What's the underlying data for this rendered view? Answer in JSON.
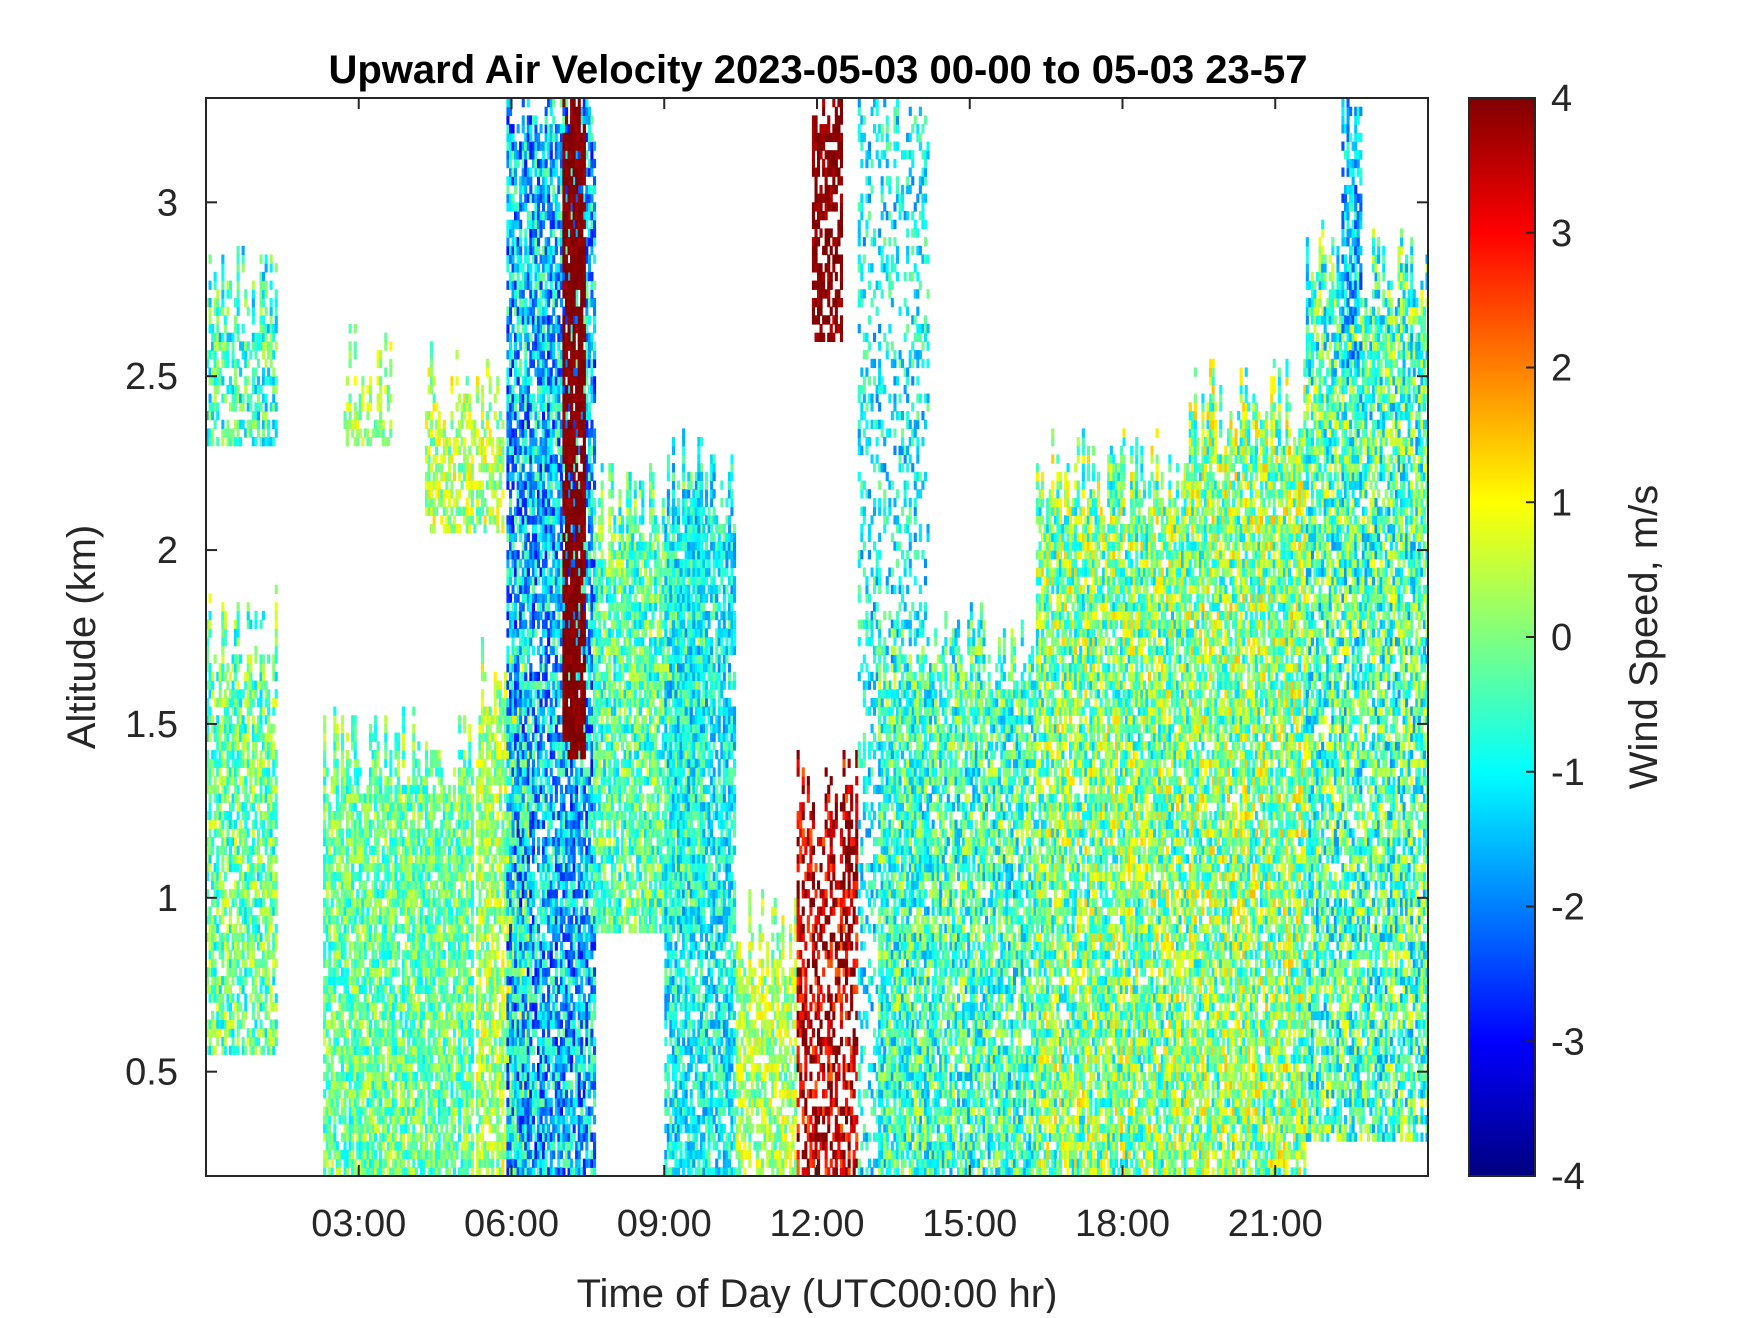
{
  "chart_data": {
    "type": "heatmap",
    "title": "Upward Air Velocity 2023-05-03 00-00 to 05-03 23-57",
    "xlabel": "Time of Day (UTC00:00 hr)",
    "ylabel": "Altitude (km)",
    "colorbar_label": "Wind Speed, m/s",
    "xlim": [
      0,
      24
    ],
    "ylim": [
      0.2,
      3.3
    ],
    "clim": [
      -4,
      4
    ],
    "colormap": "jet",
    "grid": false,
    "x_ticks": [
      {
        "value": 3,
        "label": "03:00"
      },
      {
        "value": 6,
        "label": "06:00"
      },
      {
        "value": 9,
        "label": "09:00"
      },
      {
        "value": 12,
        "label": "12:00"
      },
      {
        "value": 15,
        "label": "15:00"
      },
      {
        "value": 18,
        "label": "18:00"
      },
      {
        "value": 21,
        "label": "21:00"
      }
    ],
    "y_ticks": [
      {
        "value": 0.5,
        "label": "0.5"
      },
      {
        "value": 1,
        "label": "1"
      },
      {
        "value": 1.5,
        "label": "1.5"
      },
      {
        "value": 2,
        "label": "2"
      },
      {
        "value": 2.5,
        "label": "2.5"
      },
      {
        "value": 3,
        "label": "3"
      }
    ],
    "colorbar_ticks": [
      {
        "value": 4,
        "label": "4"
      },
      {
        "value": 3,
        "label": "3"
      },
      {
        "value": 2,
        "label": "2"
      },
      {
        "value": 1,
        "label": "1"
      },
      {
        "value": 0,
        "label": "0"
      },
      {
        "value": -1,
        "label": "-1"
      },
      {
        "value": -2,
        "label": "-2"
      },
      {
        "value": -3,
        "label": "-3"
      },
      {
        "value": -4,
        "label": "-4"
      }
    ],
    "data_regions": [
      {
        "t0": 0.0,
        "t1": 1.4,
        "z0": 0.55,
        "z1": 1.75,
        "mean": -0.2,
        "spread": 0.7,
        "density": 0.7
      },
      {
        "t0": 0.0,
        "t1": 1.4,
        "z0": 2.3,
        "z1": 2.75,
        "mean": -0.6,
        "spread": 0.7,
        "density": 0.6
      },
      {
        "t0": 2.3,
        "t1": 5.2,
        "z0": 0.2,
        "z1": 1.4,
        "mean": -0.2,
        "spread": 0.6,
        "density": 0.8
      },
      {
        "t0": 2.7,
        "t1": 3.6,
        "z0": 2.3,
        "z1": 2.5,
        "mean": 0.3,
        "spread": 0.5,
        "density": 0.6
      },
      {
        "t0": 4.3,
        "t1": 5.8,
        "z0": 2.05,
        "z1": 2.45,
        "mean": 0.4,
        "spread": 0.6,
        "density": 0.6
      },
      {
        "t0": 5.3,
        "t1": 6.3,
        "z0": 0.2,
        "z1": 1.6,
        "mean": 0.3,
        "spread": 0.6,
        "density": 0.75
      },
      {
        "t0": 5.9,
        "t1": 7.6,
        "z0": 0.2,
        "z1": 3.3,
        "mean": -1.5,
        "spread": 0.9,
        "density": 0.75
      },
      {
        "t0": 7.0,
        "t1": 7.4,
        "z0": 1.4,
        "z1": 3.3,
        "mean": 4.0,
        "spread": 0.2,
        "density": 0.8
      },
      {
        "t0": 7.6,
        "t1": 9.8,
        "z0": 0.9,
        "z1": 2.1,
        "mean": -0.3,
        "spread": 0.7,
        "density": 0.8
      },
      {
        "t0": 9.0,
        "t1": 10.4,
        "z0": 0.2,
        "z1": 2.2,
        "mean": -1.0,
        "spread": 0.6,
        "density": 0.7
      },
      {
        "t0": 10.4,
        "t1": 11.6,
        "z0": 0.2,
        "z1": 0.9,
        "mean": 0.3,
        "spread": 0.6,
        "density": 0.7
      },
      {
        "t0": 11.6,
        "t1": 12.8,
        "z0": 0.2,
        "z1": 1.3,
        "mean": 3.5,
        "spread": 0.8,
        "density": 0.5
      },
      {
        "t0": 11.9,
        "t1": 12.5,
        "z0": 2.6,
        "z1": 3.3,
        "mean": 4.0,
        "spread": 0.3,
        "density": 0.6
      },
      {
        "t0": 12.8,
        "t1": 14.2,
        "z0": 0.2,
        "z1": 3.3,
        "mean": -1.0,
        "spread": 0.6,
        "density": 0.3
      },
      {
        "t0": 13.2,
        "t1": 16.3,
        "z0": 0.2,
        "z1": 1.7,
        "mean": -0.5,
        "spread": 0.8,
        "density": 0.75
      },
      {
        "t0": 16.3,
        "t1": 19.3,
        "z0": 0.2,
        "z1": 2.2,
        "mean": 0.0,
        "spread": 0.9,
        "density": 0.8
      },
      {
        "t0": 19.3,
        "t1": 21.6,
        "z0": 0.2,
        "z1": 2.4,
        "mean": 0.1,
        "spread": 0.9,
        "density": 0.8
      },
      {
        "t0": 21.6,
        "t1": 24.0,
        "z0": 0.3,
        "z1": 2.8,
        "mean": -0.4,
        "spread": 0.9,
        "density": 0.75
      },
      {
        "t0": 22.3,
        "t1": 22.7,
        "z0": 2.5,
        "z1": 3.3,
        "mean": -1.5,
        "spread": 0.7,
        "density": 0.6
      }
    ]
  }
}
